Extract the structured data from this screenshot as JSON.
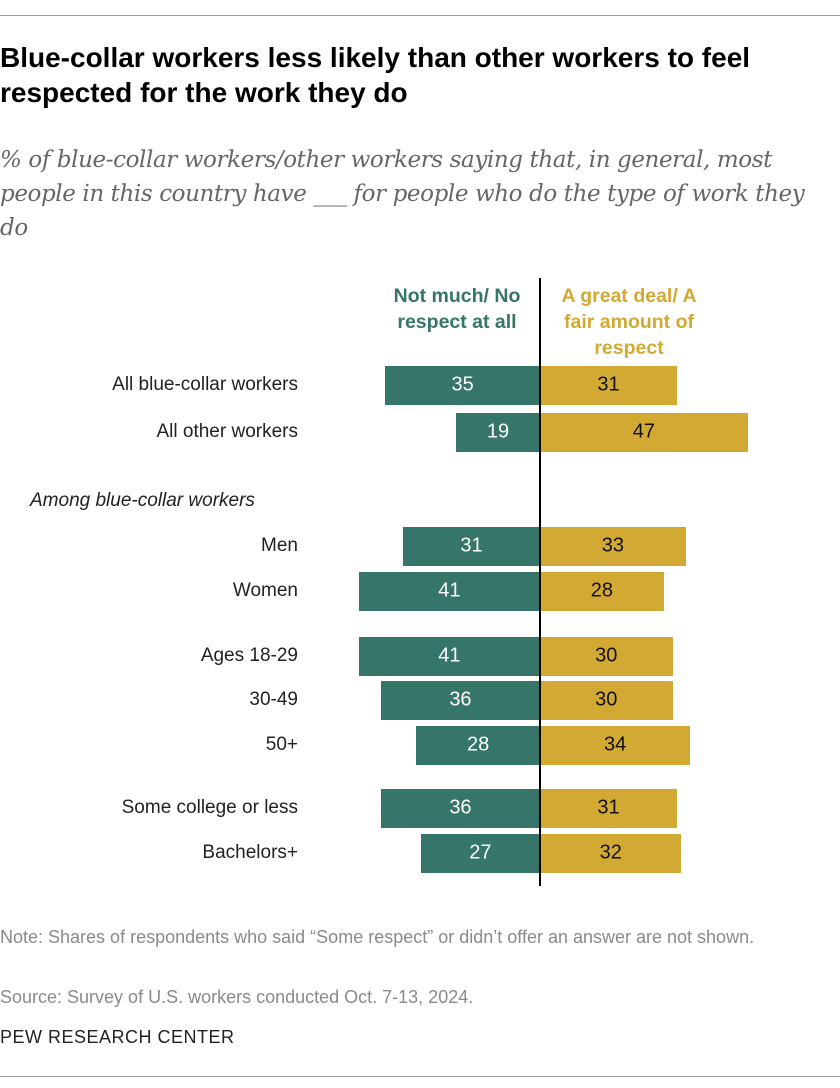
{
  "title": "Blue-collar workers less likely than other workers to feel respected for the work they do",
  "subtitle": "% of blue-collar workers/other workers saying that, in general, most people in this country have ___ for people who do the type of work they do",
  "chart_data": {
    "type": "bar",
    "orientation": "horizontal-diverging",
    "series": [
      {
        "name": "Not much/ No respect at all",
        "color": "#36756a",
        "values": [
          35,
          19,
          31,
          41,
          41,
          36,
          28,
          36,
          27
        ]
      },
      {
        "name": "A great deal/ A fair amount of respect",
        "color": "#d2a933",
        "values": [
          31,
          47,
          33,
          28,
          30,
          30,
          34,
          31,
          32
        ]
      }
    ],
    "categories": [
      "All blue-collar workers",
      "All other workers",
      "Men",
      "Women",
      "Ages 18-29",
      "30-49",
      "50+",
      "Some college or less",
      "Bachelors+"
    ],
    "group_label": "Among blue-collar workers",
    "legend_placement": "top",
    "grid": false
  },
  "note": "Note: Shares of respondents who said “Some respect” or didn’t offer an answer are not shown.",
  "source": "Source: Survey of U.S. workers conducted Oct. 7-13, 2024.",
  "brand": "PEW RESEARCH CENTER"
}
